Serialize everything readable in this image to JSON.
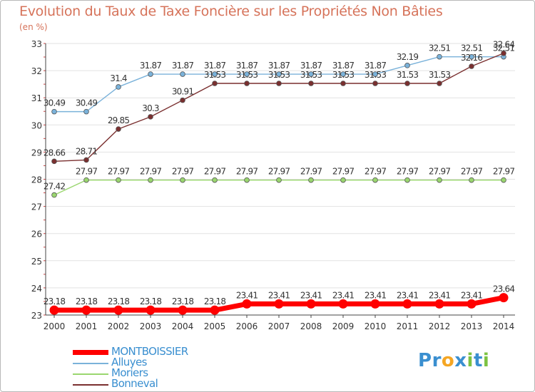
{
  "chart_data": {
    "type": "line",
    "title": "Evolution du Taux de Taxe Foncière sur les Propriétés Non Bâties",
    "ylabel": "(en %)",
    "xlabel": "",
    "ylim": [
      23,
      33
    ],
    "yticks": [
      23,
      24,
      25,
      26,
      27,
      28,
      29,
      30,
      31,
      32,
      33
    ],
    "x": [
      2000,
      2001,
      2002,
      2003,
      2004,
      2005,
      2006,
      2007,
      2008,
      2009,
      2010,
      2011,
      2012,
      2013,
      2014
    ],
    "series": [
      {
        "name": "MONTBOISSIER",
        "color": "#ff0000",
        "values": [
          23.18,
          23.18,
          23.18,
          23.18,
          23.18,
          23.18,
          23.41,
          23.41,
          23.41,
          23.41,
          23.41,
          23.41,
          23.41,
          23.41,
          23.64
        ],
        "labels": [
          "23.18",
          "23.18",
          "23.18",
          "23.18",
          "23.18",
          "23.18",
          "23.41",
          "23.41",
          "23.41",
          "23.41",
          "23.41",
          "23.41",
          "23.41",
          "23.41",
          "23.64"
        ]
      },
      {
        "name": "Alluyes",
        "color": "#7ab2da",
        "values": [
          30.49,
          30.49,
          31.4,
          31.87,
          31.87,
          31.87,
          31.87,
          31.87,
          31.87,
          31.87,
          31.87,
          32.19,
          32.51,
          32.51,
          32.51
        ],
        "labels": [
          "30.49",
          "30.49",
          "31.4",
          "31.87",
          "31.87",
          "31.87",
          "31.87",
          "31.87",
          "31.87",
          "31.87",
          "31.87",
          "32.19",
          "32.51",
          "32.51",
          "32.51"
        ]
      },
      {
        "name": "Moriers",
        "color": "#9ad66f",
        "values": [
          27.42,
          27.97,
          27.97,
          27.97,
          27.97,
          27.97,
          27.97,
          27.97,
          27.97,
          27.97,
          27.97,
          27.97,
          27.97,
          27.97,
          27.97
        ],
        "labels": [
          "27.42",
          "27.97",
          "27.97",
          "27.97",
          "27.97",
          "27.97",
          "27.97",
          "27.97",
          "27.97",
          "27.97",
          "27.97",
          "27.97",
          "27.97",
          "27.97",
          "27.97"
        ]
      },
      {
        "name": "Bonneval",
        "color": "#7a2f2f",
        "values": [
          28.66,
          28.71,
          29.85,
          30.3,
          30.91,
          31.53,
          31.53,
          31.53,
          31.53,
          31.53,
          31.53,
          31.53,
          31.53,
          32.16,
          32.64
        ],
        "labels": [
          "28.66",
          "28.71",
          "29.85",
          "30.3",
          "30.91",
          "31.53",
          "31.53",
          "31.53",
          "31.53",
          "31.53",
          "31.53",
          "31.53",
          "31.53",
          "32.16",
          "32.64"
        ]
      }
    ]
  },
  "logo": {
    "letters": [
      "P",
      "r",
      "o",
      "x",
      "i",
      "t",
      "i"
    ],
    "colors": [
      "#3a8fd0",
      "#3a8fd0",
      "#f5a623",
      "#3a8fd0",
      "#7cc242",
      "#3a8fd0",
      "#7cc242"
    ]
  }
}
